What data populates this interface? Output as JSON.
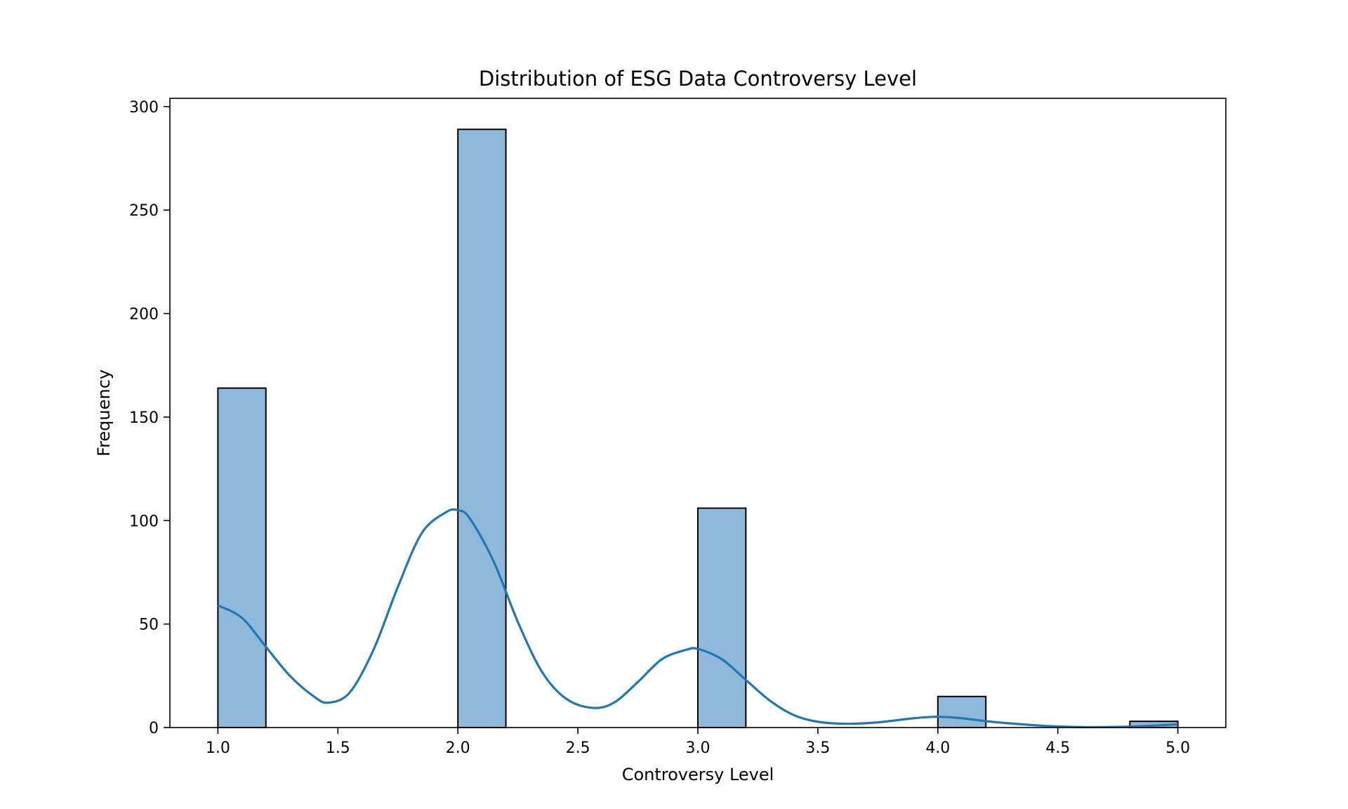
{
  "chart_data": {
    "type": "bar",
    "title": "Distribution of ESG Data Controversy Level",
    "xlabel": "Controversy Level",
    "ylabel": "Frequency",
    "xlim": [
      0.8,
      5.2
    ],
    "ylim": [
      0,
      304
    ],
    "xticks": [
      "1.0",
      "1.5",
      "2.0",
      "2.5",
      "3.0",
      "3.5",
      "4.0",
      "4.5",
      "5.0"
    ],
    "yticks": [
      "0",
      "50",
      "100",
      "150",
      "200",
      "250",
      "300"
    ],
    "bin_width": 0.2,
    "bins": [
      {
        "start": 1.0,
        "count": 164
      },
      {
        "start": 2.0,
        "count": 289
      },
      {
        "start": 3.0,
        "count": 106
      },
      {
        "start": 4.0,
        "count": 15
      },
      {
        "start": 4.8,
        "count": 3
      }
    ],
    "kde": {
      "x": [
        1.0,
        1.1,
        1.2,
        1.3,
        1.4,
        1.46,
        1.55,
        1.65,
        1.75,
        1.85,
        1.95,
        2.0,
        2.05,
        2.15,
        2.25,
        2.35,
        2.45,
        2.56,
        2.65,
        2.75,
        2.85,
        2.95,
        3.0,
        3.1,
        3.2,
        3.3,
        3.4,
        3.5,
        3.62,
        3.75,
        3.9,
        4.0,
        4.1,
        4.25,
        4.5,
        4.75,
        5.0
      ],
      "y": [
        59,
        53,
        39,
        25,
        15,
        12,
        17,
        38,
        68,
        94,
        104,
        105,
        101,
        80,
        51,
        27,
        14,
        9.5,
        12,
        22,
        33,
        37.5,
        38,
        33,
        23,
        13,
        6,
        2.8,
        1.8,
        2.5,
        4.5,
        5.2,
        4.5,
        2.5,
        0.5,
        0.3,
        1.5
      ]
    },
    "colors": {
      "bar_fill": "#8fb9db",
      "bar_edge": "#000000",
      "kde_line": "#1f77b4"
    },
    "grid": false,
    "legend": "none"
  }
}
